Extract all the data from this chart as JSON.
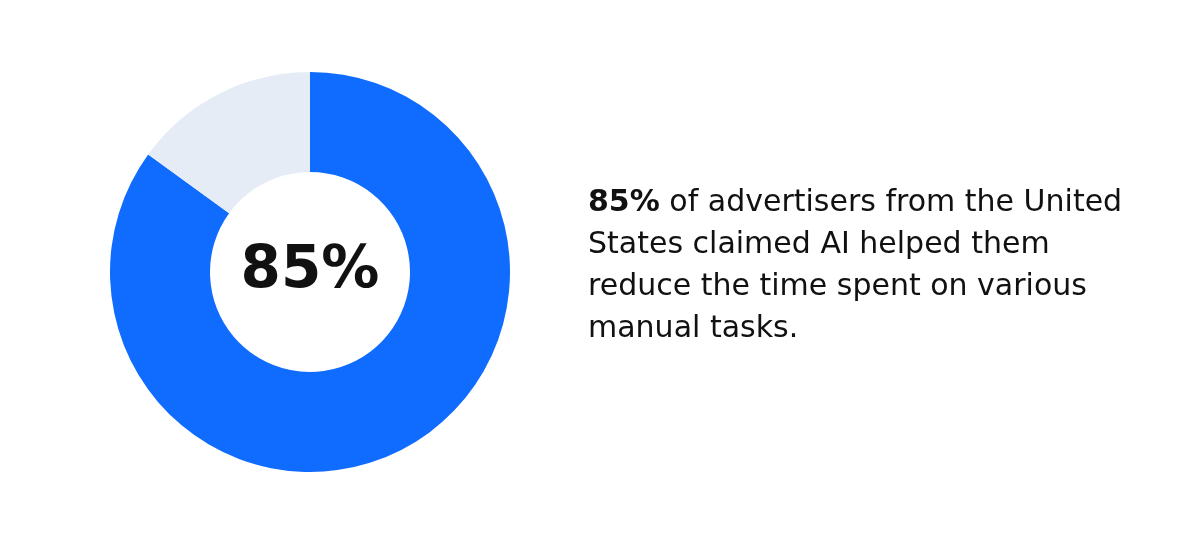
{
  "chart_data": {
    "type": "donut",
    "categories": [
      null,
      null
    ],
    "values": [
      85,
      15
    ],
    "colors": [
      "#0f6cff",
      "#e6ecf6"
    ],
    "value_labels": [
      "85%",
      null
    ],
    "annotations": [
      "85% of advertisers from the United States claimed AI helped them reduce the time spent on various manual tasks."
    ]
  }
}
